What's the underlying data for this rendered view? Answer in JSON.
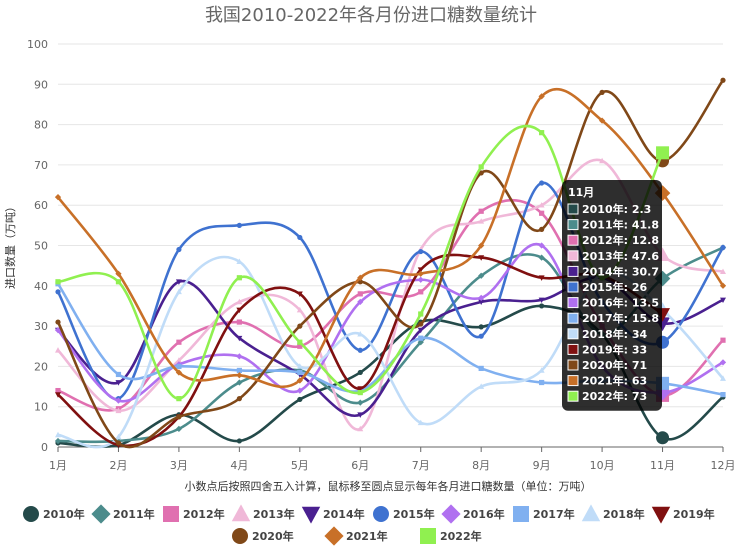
{
  "chart_data": {
    "type": "line",
    "title": "我国2010-2022年各月份进口糖数量统计",
    "xlabel": "小数点后按照四舍五入计算，鼠标移至圆点显示每年各月进口糖数量（单位：万吨）",
    "ylabel": "进口数量（万吨）",
    "ylim": [
      0,
      100
    ],
    "yticks": [
      0,
      10,
      20,
      30,
      40,
      50,
      60,
      70,
      80,
      90,
      100
    ],
    "categories": [
      "1月",
      "2月",
      "3月",
      "4月",
      "5月",
      "6月",
      "7月",
      "8月",
      "9月",
      "10月",
      "11月",
      "12月"
    ],
    "grid": true,
    "legend_position": "bottom",
    "series": [
      {
        "name": "2010年",
        "color": "#244a4a",
        "marker": "circle",
        "values": [
          1.0,
          0.5,
          8.0,
          1.5,
          11.8,
          18.5,
          31.0,
          29.8,
          35.0,
          28.0,
          2.3,
          12.4
        ]
      },
      {
        "name": "2011年",
        "color": "#4c8c8c",
        "marker": "diamond",
        "values": [
          1.5,
          1.5,
          4.5,
          16.0,
          19.0,
          11.0,
          26.0,
          42.5,
          47.0,
          28.0,
          41.8,
          49.5
        ]
      },
      {
        "name": "2012年",
        "color": "#e070b0",
        "marker": "square",
        "values": [
          14.0,
          9.5,
          26.0,
          31.0,
          25.0,
          38.0,
          38.5,
          58.5,
          58.0,
          30.0,
          12.8,
          26.5
        ]
      },
      {
        "name": "2013年",
        "color": "#f0b8d8",
        "marker": "triangle-up",
        "values": [
          24.0,
          9.0,
          21.5,
          36.0,
          34.0,
          4.5,
          49.0,
          56.0,
          60.0,
          71.0,
          47.6,
          43.5
        ]
      },
      {
        "name": "2014年",
        "color": "#4a2090",
        "marker": "triangle-down",
        "values": [
          29.0,
          16.0,
          41.0,
          27.0,
          18.0,
          8.0,
          29.0,
          36.0,
          36.5,
          42.0,
          30.7,
          36.5
        ]
      },
      {
        "name": "2015年",
        "color": "#3f72d0",
        "marker": "circle",
        "values": [
          38.5,
          12.0,
          49.0,
          55.0,
          52.0,
          24.0,
          48.5,
          27.5,
          65.5,
          36.0,
          26.0,
          49.5
        ]
      },
      {
        "name": "2016年",
        "color": "#b070f0",
        "marker": "diamond",
        "values": [
          29.0,
          11.5,
          20.5,
          22.5,
          14.0,
          36.0,
          41.5,
          37.0,
          50.0,
          20.0,
          13.5,
          21.0
        ]
      },
      {
        "name": "2017年",
        "color": "#80b0f0",
        "marker": "square",
        "values": [
          40.5,
          18.0,
          20.0,
          19.0,
          18.5,
          14.0,
          27.0,
          19.5,
          16.0,
          16.5,
          15.8,
          13.0
        ]
      },
      {
        "name": "2018年",
        "color": "#c0dcf8",
        "marker": "triangle-up",
        "values": [
          3.0,
          2.5,
          38.5,
          46.0,
          20.0,
          28.0,
          6.0,
          15.0,
          19.0,
          43.0,
          34.0,
          17.0
        ]
      },
      {
        "name": "2019年",
        "color": "#801010",
        "marker": "triangle-down",
        "values": [
          13.0,
          0.5,
          7.5,
          34.0,
          38.0,
          14.5,
          44.0,
          47.0,
          42.0,
          42.5,
          33.0,
          null
        ]
      },
      {
        "name": "2020年",
        "color": "#804818",
        "marker": "circle",
        "values": [
          31.0,
          1.0,
          7.5,
          12.0,
          30.0,
          41.0,
          30.5,
          68.0,
          54.0,
          88.0,
          71.0,
          91.0
        ]
      },
      {
        "name": "2021年",
        "color": "#c87028",
        "marker": "diamond",
        "values": [
          62.0,
          43.0,
          18.5,
          17.8,
          16.5,
          42.0,
          43.0,
          50.0,
          87.0,
          81.0,
          63.0,
          40.0
        ]
      },
      {
        "name": "2022年",
        "color": "#90f050",
        "marker": "square",
        "values": [
          41.0,
          41.0,
          12.0,
          42.0,
          26.0,
          13.5,
          33.0,
          69.5,
          78.0,
          42.0,
          73.0,
          null
        ]
      }
    ],
    "tooltip": {
      "title": "11月",
      "rows": [
        "2010年: 2.3",
        "2011年: 41.8",
        "2012年: 12.8",
        "2013年: 47.6",
        "2014年: 30.7",
        "2015年: 26",
        "2016年: 13.5",
        "2017年: 15.8",
        "2018年: 34",
        "2019年: 33",
        "2020年: 71",
        "2021年: 63",
        "2022年: 73"
      ]
    }
  }
}
